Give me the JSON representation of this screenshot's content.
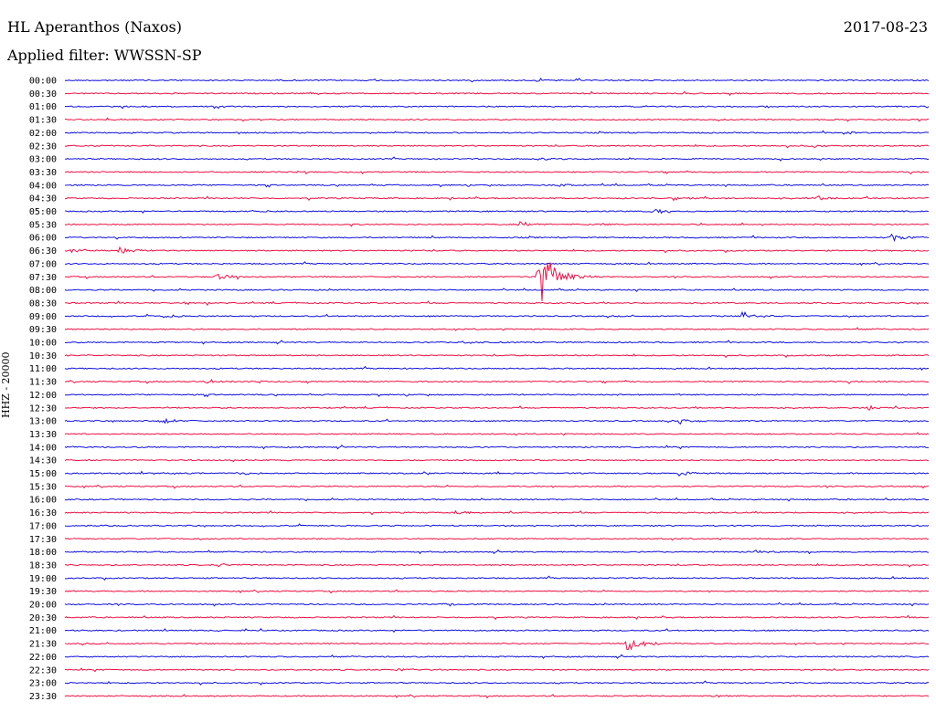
{
  "header": {
    "station": "HL Aperanthos (Naxos)",
    "date": "2017-08-23",
    "filter": "Applied filter: WWSSN-SP"
  },
  "chart_data": {
    "type": "line",
    "ylabel": "HHZ - 20000",
    "title": "HL Aperanthos (Naxos)",
    "tick_labels": [
      "00:00",
      "00:30",
      "01:00",
      "01:30",
      "02:00",
      "02:30",
      "03:00",
      "03:30",
      "04:00",
      "04:30",
      "05:00",
      "05:30",
      "06:00",
      "06:30",
      "07:00",
      "07:30",
      "08:00",
      "08:30",
      "09:00",
      "09:30",
      "10:00",
      "10:30",
      "11:00",
      "11:30",
      "12:00",
      "12:30",
      "13:00",
      "13:30",
      "14:00",
      "14:30",
      "15:00",
      "15:30",
      "16:00",
      "16:30",
      "17:00",
      "17:30",
      "18:00",
      "18:30",
      "19:00",
      "19:30",
      "20:00",
      "20:30",
      "21:00",
      "21:30",
      "22:00",
      "22:30",
      "23:00",
      "23:30"
    ],
    "trace_colors": [
      "#1010dd",
      "#ee1144"
    ],
    "trace_minutes": 30,
    "grid": false,
    "events": [
      {
        "t": "00:00",
        "min": 16.3,
        "amp": 0.25
      },
      {
        "t": "00:30",
        "min": 8.5,
        "amp": 0.3
      },
      {
        "t": "01:00",
        "min": 24.3,
        "amp": 0.35
      },
      {
        "t": "02:00",
        "min": 27.0,
        "amp": 0.4
      },
      {
        "t": "02:30",
        "min": 26.0,
        "amp": 0.35
      },
      {
        "t": "03:00",
        "min": 16.4,
        "amp": 0.3
      },
      {
        "t": "04:00",
        "min": 17.1,
        "amp": 0.55
      },
      {
        "t": "04:30",
        "min": 21.1,
        "amp": 0.6
      },
      {
        "t": "04:30",
        "min": 26.1,
        "amp": 0.7
      },
      {
        "t": "05:00",
        "min": 20.4,
        "amp": 0.9
      },
      {
        "t": "05:00",
        "min": 6.5,
        "amp": 0.3
      },
      {
        "t": "05:30",
        "min": 15.7,
        "amp": 0.8
      },
      {
        "t": "05:30",
        "min": 18.5,
        "amp": 0.5
      },
      {
        "t": "06:00",
        "min": 28.7,
        "amp": 1.1
      },
      {
        "t": "06:30",
        "min": 0.2,
        "amp": 0.7
      },
      {
        "t": "06:30",
        "min": 1.9,
        "amp": 0.9
      },
      {
        "t": "07:30",
        "min": 16.4,
        "amp": 11.0
      },
      {
        "t": "07:30",
        "min": 5.2,
        "amp": 0.9
      },
      {
        "t": "08:30",
        "min": 4.1,
        "amp": 0.6
      },
      {
        "t": "09:00",
        "min": 23.5,
        "amp": 1.3
      },
      {
        "t": "09:00",
        "min": 3.3,
        "amp": 0.6
      },
      {
        "t": "10:00",
        "min": 13.7,
        "amp": 0.6
      },
      {
        "t": "11:30",
        "min": 4.9,
        "amp": 0.7
      },
      {
        "t": "11:30",
        "min": 6.7,
        "amp": 0.5
      },
      {
        "t": "12:30",
        "min": 27.9,
        "amp": 0.7
      },
      {
        "t": "13:00",
        "min": 3.3,
        "amp": 0.7
      },
      {
        "t": "13:00",
        "min": 21.3,
        "amp": 0.8
      },
      {
        "t": "15:00",
        "min": 6.0,
        "amp": 0.5
      },
      {
        "t": "15:00",
        "min": 21.3,
        "amp": 0.9
      },
      {
        "t": "16:30",
        "min": 13.5,
        "amp": 0.4
      },
      {
        "t": "18:00",
        "min": 24.0,
        "amp": 0.4
      },
      {
        "t": "18:30",
        "min": 5.3,
        "amp": 0.4
      },
      {
        "t": "20:00",
        "min": 13.0,
        "amp": 0.3
      },
      {
        "t": "21:30",
        "min": 19.5,
        "amp": 2.4
      },
      {
        "t": "22:30",
        "min": 11.5,
        "amp": 0.5
      },
      {
        "t": "23:30",
        "min": 22.4,
        "amp": 0.35
      }
    ]
  }
}
